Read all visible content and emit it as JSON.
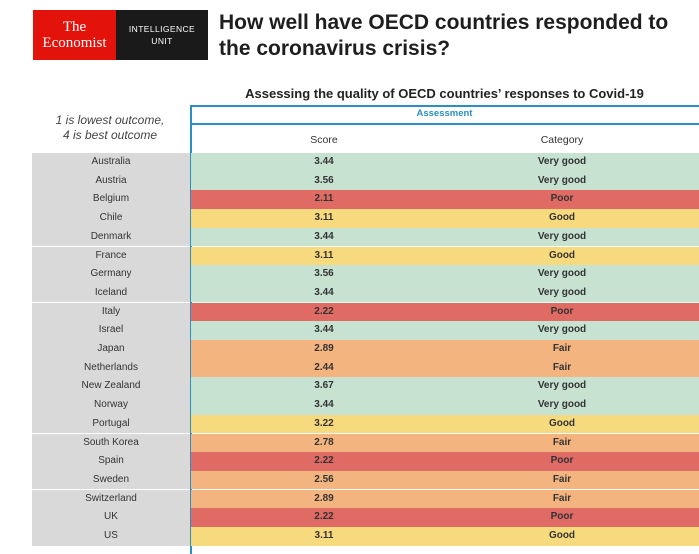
{
  "logo": {
    "line1": "The",
    "line2": "Economist",
    "unit_line1": "INTELLIGENCE",
    "unit_line2": "UNIT"
  },
  "title": "How well have OECD countries responded to the coronavirus crisis?",
  "subtitle": "Assessing the quality of OECD countries’ responses to Covid-19",
  "assessment_label": "Assessment",
  "legend_line1": "1 is lowest outcome,",
  "legend_line2": "4 is best outcome",
  "columns": {
    "score": "Score",
    "category": "Category"
  },
  "colors": {
    "Very good": "#c7e2d1",
    "Good": "#f8da7e",
    "Fair": "#f4b47f",
    "Poor": "#e06a64",
    "name_bg": "#d9d9d9",
    "accent": "#2c8fc1"
  },
  "chart_data": {
    "type": "table",
    "title": "How well have OECD countries responded to the coronavirus crisis?",
    "subtitle": "Assessing the quality of OECD countries’ responses to Covid-19",
    "columns": [
      "Score",
      "Category"
    ],
    "rows": [
      {
        "country": "Australia",
        "score": "3.44",
        "category": "Very good"
      },
      {
        "country": "Austria",
        "score": "3.56",
        "category": "Very good"
      },
      {
        "country": "Belgium",
        "score": "2.11",
        "category": "Poor"
      },
      {
        "country": "Chile",
        "score": "3.11",
        "category": "Good"
      },
      {
        "country": "Denmark",
        "score": "3.44",
        "category": "Very good"
      },
      {
        "country": "France",
        "score": "3.11",
        "category": "Good"
      },
      {
        "country": "Germany",
        "score": "3.56",
        "category": "Very good"
      },
      {
        "country": "Iceland",
        "score": "3.44",
        "category": "Very good"
      },
      {
        "country": "Italy",
        "score": "2.22",
        "category": "Poor"
      },
      {
        "country": "Israel",
        "score": "3.44",
        "category": "Very good"
      },
      {
        "country": "Japan",
        "score": "2.89",
        "category": "Fair"
      },
      {
        "country": "Netherlands",
        "score": "2.44",
        "category": "Fair"
      },
      {
        "country": "New Zealand",
        "score": "3.67",
        "category": "Very good"
      },
      {
        "country": "Norway",
        "score": "3.44",
        "category": "Very good"
      },
      {
        "country": "Portugal",
        "score": "3.22",
        "category": "Good"
      },
      {
        "country": "South Korea",
        "score": "2.78",
        "category": "Fair"
      },
      {
        "country": "Spain",
        "score": "2.22",
        "category": "Poor"
      },
      {
        "country": "Sweden",
        "score": "2.56",
        "category": "Fair"
      },
      {
        "country": "Switzerland",
        "score": "2.89",
        "category": "Fair"
      },
      {
        "country": "UK",
        "score": "2.22",
        "category": "Poor"
      },
      {
        "country": "US",
        "score": "3.11",
        "category": "Good"
      }
    ]
  }
}
